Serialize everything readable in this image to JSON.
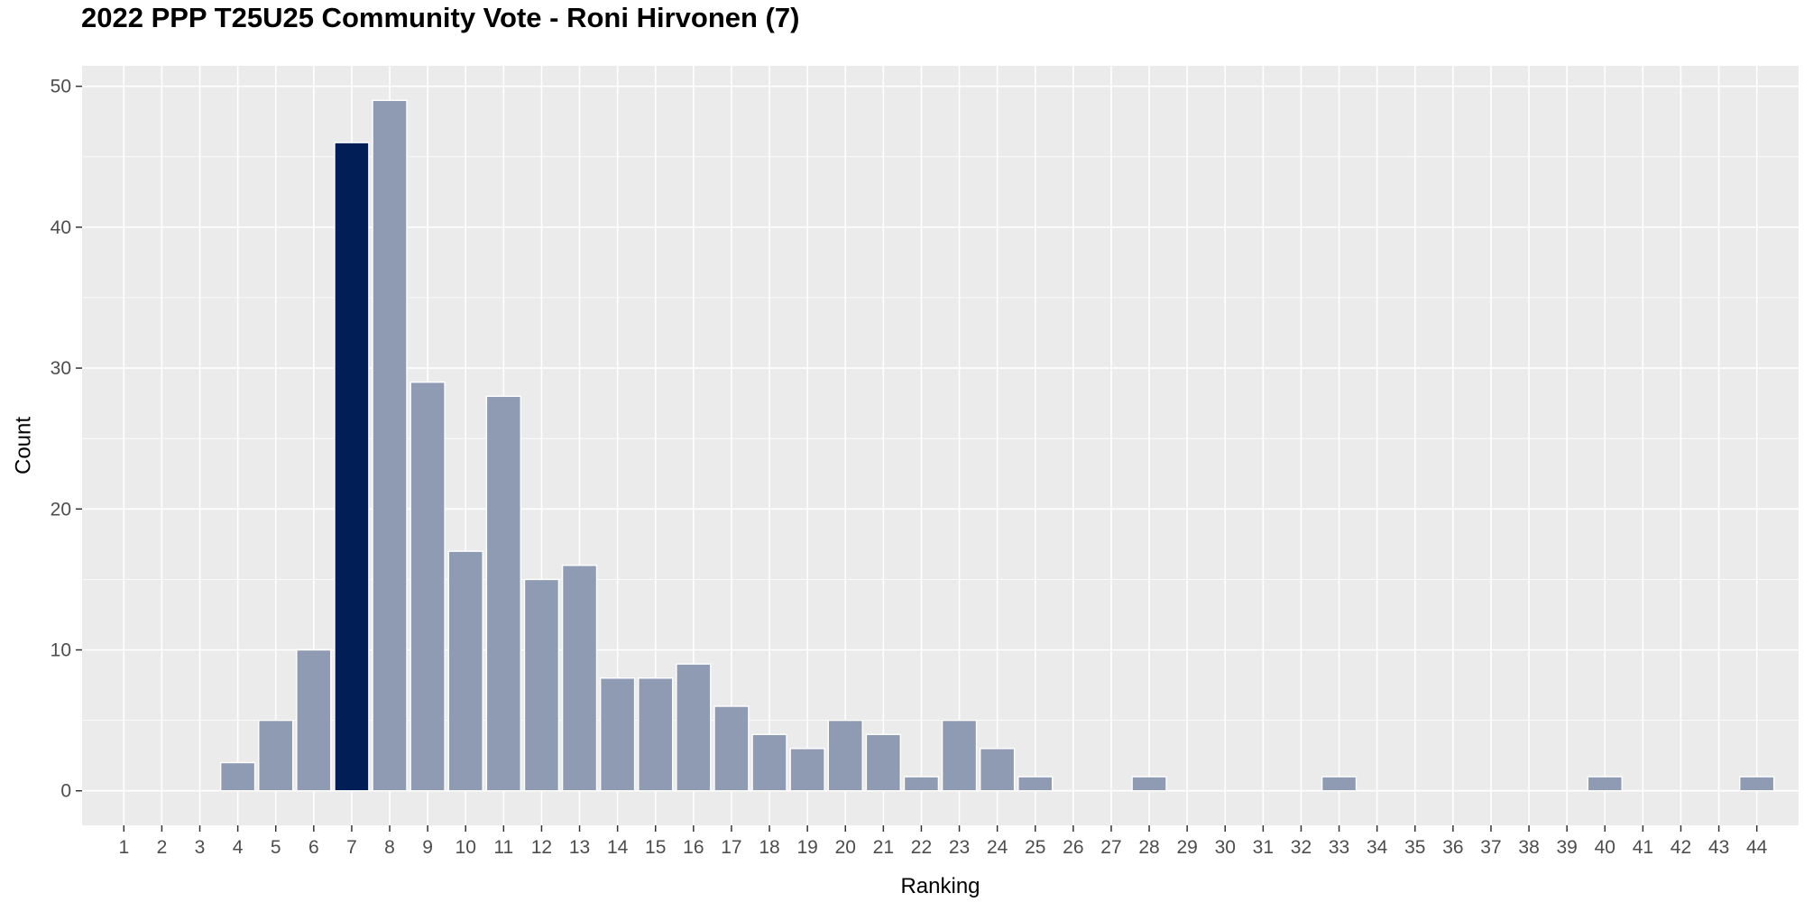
{
  "chart_data": {
    "type": "bar",
    "title": "2022 PPP T25U25 Community Vote - Roni Hirvonen (7)",
    "xlabel": "Ranking",
    "ylabel": "Count",
    "categories": [
      "1",
      "2",
      "3",
      "4",
      "5",
      "6",
      "7",
      "8",
      "9",
      "10",
      "11",
      "12",
      "13",
      "14",
      "15",
      "16",
      "17",
      "18",
      "19",
      "20",
      "21",
      "22",
      "23",
      "24",
      "25",
      "26",
      "27",
      "28",
      "29",
      "30",
      "31",
      "32",
      "33",
      "34",
      "35",
      "36",
      "37",
      "38",
      "39",
      "40",
      "41",
      "42",
      "43",
      "44"
    ],
    "values": [
      0,
      0,
      0,
      2,
      5,
      10,
      46,
      49,
      29,
      17,
      28,
      15,
      16,
      8,
      8,
      9,
      6,
      4,
      3,
      5,
      4,
      1,
      5,
      3,
      1,
      0,
      0,
      1,
      0,
      0,
      0,
      0,
      1,
      0,
      0,
      0,
      0,
      0,
      0,
      1,
      0,
      0,
      0,
      1
    ],
    "highlight_category": "7",
    "yticks": [
      0,
      10,
      20,
      30,
      40,
      50
    ],
    "ylim": [
      -2.45,
      51.45
    ],
    "grid": true,
    "colors": {
      "bar": "#8f9ab3",
      "highlight": "#011e57",
      "bar_outline": "#ffffff",
      "panel_background": "#ebebeb",
      "grid": "#ffffff"
    }
  }
}
